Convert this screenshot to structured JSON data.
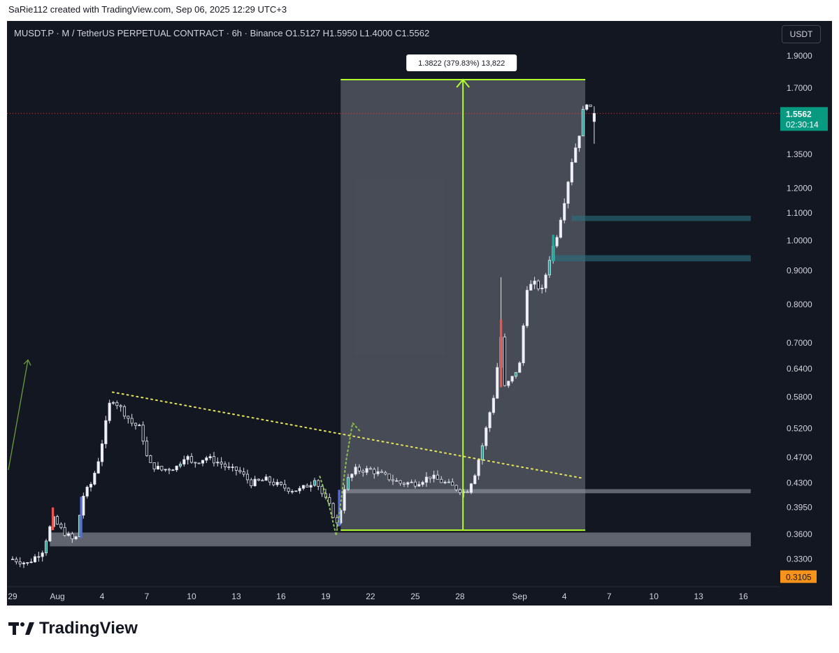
{
  "header": {
    "credit": "SaRie112 created with TradingView.com, Sep 06, 2025 12:29 UTC+3"
  },
  "legend": {
    "symbol_line": "MUSDT.P · M / TetherUS PERPETUAL CONTRACT · 6h · Binance   O1.5127   H1.5950   L1.4000   C1.5562"
  },
  "currency_button": "USDT",
  "price_tag": {
    "price": "1.5562",
    "countdown": "02:30:14"
  },
  "low_tag": "0.3105",
  "measure_label": "1.3822 (379.83%) 13,822",
  "brand": {
    "name": "TradingView"
  },
  "colors": {
    "background": "#131722",
    "up": "#26a69a",
    "down": "#ef5350",
    "measure": "#b2ff2e",
    "trendline": "#e6e65a",
    "tag_green": "#089981",
    "tag_orange": "#f7931a"
  },
  "chart_data": {
    "type": "candlestick",
    "title": "MUSDT.P · M / TetherUS PERPETUAL CONTRACT · 6h · Binance",
    "scale": "log",
    "ylim": [
      0.305,
      2.02
    ],
    "yticks": [
      1.9,
      1.7,
      1.35,
      1.2,
      1.1,
      1.0,
      0.9,
      0.8,
      0.7,
      0.64,
      0.58,
      0.52,
      0.47,
      0.43,
      0.395,
      0.36,
      0.33
    ],
    "ytick_labels": [
      "1.9000",
      "1.7000",
      "1.3500",
      "1.2000",
      "1.1000",
      "1.0000",
      "0.9000",
      "0.8000",
      "0.7000",
      "0.6400",
      "0.5800",
      "0.5200",
      "0.4700",
      "0.4300",
      "0.3950",
      "0.3600",
      "0.3300"
    ],
    "xticks": [
      {
        "label": "29",
        "day": -3
      },
      {
        "label": "Aug",
        "day": 0
      },
      {
        "label": "4",
        "day": 3
      },
      {
        "label": "7",
        "day": 6
      },
      {
        "label": "10",
        "day": 9
      },
      {
        "label": "13",
        "day": 12
      },
      {
        "label": "16",
        "day": 15
      },
      {
        "label": "19",
        "day": 18
      },
      {
        "label": "22",
        "day": 21
      },
      {
        "label": "25",
        "day": 24
      },
      {
        "label": "28",
        "day": 27
      },
      {
        "label": "Sep",
        "day": 31
      },
      {
        "label": "4",
        "day": 34
      },
      {
        "label": "7",
        "day": 37
      },
      {
        "label": "10",
        "day": 40
      },
      {
        "label": "13",
        "day": 43
      },
      {
        "label": "16",
        "day": 46
      }
    ],
    "ohlc": {
      "O": 1.5127,
      "H": 1.595,
      "L": 1.4,
      "C": 1.5562,
      "anchors": [
        [
          -3.0,
          0.33
        ],
        [
          -2.0,
          0.325
        ],
        [
          -1.0,
          0.34
        ],
        [
          -0.3,
          0.38
        ],
        [
          0.3,
          0.365
        ],
        [
          1.2,
          0.35
        ],
        [
          1.7,
          0.41
        ],
        [
          2.3,
          0.43
        ],
        [
          2.8,
          0.47
        ],
        [
          3.6,
          0.58
        ],
        [
          4.2,
          0.56
        ],
        [
          5.0,
          0.53
        ],
        [
          5.6,
          0.52
        ],
        [
          6.1,
          0.46
        ],
        [
          7.0,
          0.45
        ],
        [
          8.0,
          0.455
        ],
        [
          8.6,
          0.475
        ],
        [
          9.0,
          0.46
        ],
        [
          10.0,
          0.47
        ],
        [
          11.0,
          0.46
        ],
        [
          11.6,
          0.45
        ],
        [
          12.1,
          0.45
        ],
        [
          13.0,
          0.43
        ],
        [
          14.0,
          0.435
        ],
        [
          15.0,
          0.425
        ],
        [
          15.7,
          0.42
        ],
        [
          16.3,
          0.42
        ],
        [
          17.0,
          0.43
        ],
        [
          17.3,
          0.44
        ],
        [
          17.6,
          0.42
        ],
        [
          18.3,
          0.395
        ],
        [
          18.8,
          0.37
        ],
        [
          19.3,
          0.43
        ],
        [
          20.0,
          0.45
        ],
        [
          21.0,
          0.45
        ],
        [
          22.0,
          0.44
        ],
        [
          23.0,
          0.43
        ],
        [
          24.0,
          0.43
        ],
        [
          25.0,
          0.44
        ],
        [
          26.0,
          0.43
        ],
        [
          27.0,
          0.42
        ],
        [
          27.4,
          0.415
        ],
        [
          28.0,
          0.445
        ],
        [
          28.5,
          0.49
        ],
        [
          29.0,
          0.55
        ],
        [
          29.4,
          0.6
        ],
        [
          29.7,
          0.74
        ],
        [
          30.0,
          0.6
        ],
        [
          30.5,
          0.62
        ],
        [
          31.0,
          0.65
        ],
        [
          31.5,
          0.85
        ],
        [
          32.0,
          0.86
        ],
        [
          32.5,
          0.84
        ],
        [
          33.0,
          0.94
        ],
        [
          33.5,
          1.02
        ],
        [
          34.0,
          1.15
        ],
        [
          34.5,
          1.32
        ],
        [
          35.0,
          1.45
        ],
        [
          35.4,
          1.64
        ],
        [
          35.7,
          1.58
        ],
        [
          36.0,
          1.5562
        ]
      ]
    },
    "current_price": 1.5562,
    "period_low": 0.3105,
    "measure": {
      "from_price": 0.365,
      "to_price": 1.75,
      "from_day": 19.0,
      "to_day": 35.4,
      "change": 1.3822,
      "percent": 379.83,
      "ticks": 13822
    },
    "zones": [
      {
        "from_price": 0.345,
        "to_price": 0.362,
        "from_day": -0.5,
        "to_day": 46.5,
        "color": "#9598a1"
      },
      {
        "from_price": 0.415,
        "to_price": 0.421,
        "from_day": 19.3,
        "to_day": 46.5,
        "color": "#9598a1"
      },
      {
        "from_price": 1.07,
        "to_price": 1.09,
        "from_day": 34.5,
        "to_day": 46.5,
        "color": "#2a6f7f"
      },
      {
        "from_price": 0.93,
        "to_price": 0.95,
        "from_day": 33.0,
        "to_day": 46.5,
        "color": "#2a6f7f"
      }
    ],
    "trendline": {
      "from_day": 3.7,
      "from_price": 0.59,
      "to_day": 35.3,
      "to_price": 0.437
    }
  }
}
